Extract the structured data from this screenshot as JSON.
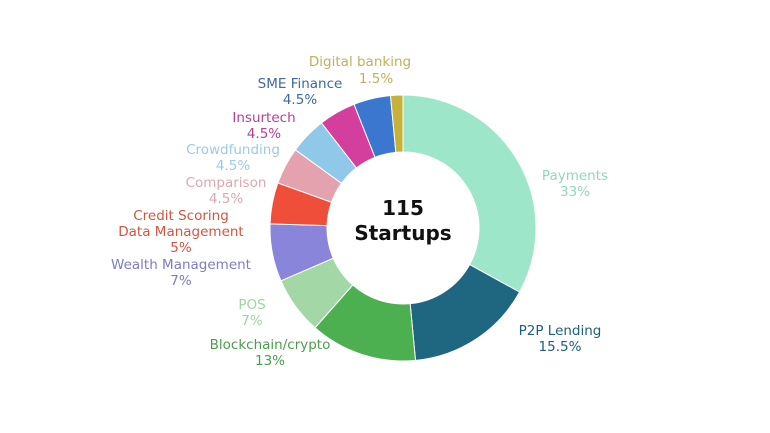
{
  "chart_data": {
    "type": "pie",
    "variant": "donut",
    "center_label": {
      "count": "115",
      "unit": "Startups"
    },
    "slices": [
      {
        "name": "Payments",
        "value": 33,
        "label": "33%",
        "color": "#9ee6c9",
        "label_color": "#8fd8bb"
      },
      {
        "name": "P2P Lending",
        "value": 15.5,
        "label": "15.5%",
        "color": "#1f6680",
        "label_color": "#1f5f78"
      },
      {
        "name": "Blockchain/crypto",
        "value": 13,
        "label": "13%",
        "color": "#4caf50",
        "label_color": "#4a9e4c"
      },
      {
        "name": "POS",
        "value": 7,
        "label": "7%",
        "color": "#a3d8a6",
        "label_color": "#9fd3a2"
      },
      {
        "name": "Wealth Management",
        "value": 7,
        "label": "7%",
        "color": "#8885da",
        "label_color": "#7f7cc0"
      },
      {
        "name": "Credit Scoring\nData Management",
        "value": 5,
        "label": "5%",
        "color": "#ef4e3a",
        "label_color": "#d2553f"
      },
      {
        "name": "Comparison",
        "value": 4.5,
        "label": "4.5%",
        "color": "#e4a2ae",
        "label_color": "#d9a8b1"
      },
      {
        "name": "Crowdfunding",
        "value": 4.5,
        "label": "4.5%",
        "color": "#90c8ea",
        "label_color": "#9ccbe0"
      },
      {
        "name": "Insurtech",
        "value": 4.5,
        "label": "4.5%",
        "color": "#d43f9e",
        "label_color": "#b8408e"
      },
      {
        "name": "SME Finance",
        "value": 4.5,
        "label": "4.5%",
        "color": "#3b77cf",
        "label_color": "#3f6a99"
      },
      {
        "name": "Digital banking",
        "value": 1.5,
        "label": "1.5%",
        "color": "#c6b23a",
        "label_color": "#bdb25a"
      }
    ]
  }
}
